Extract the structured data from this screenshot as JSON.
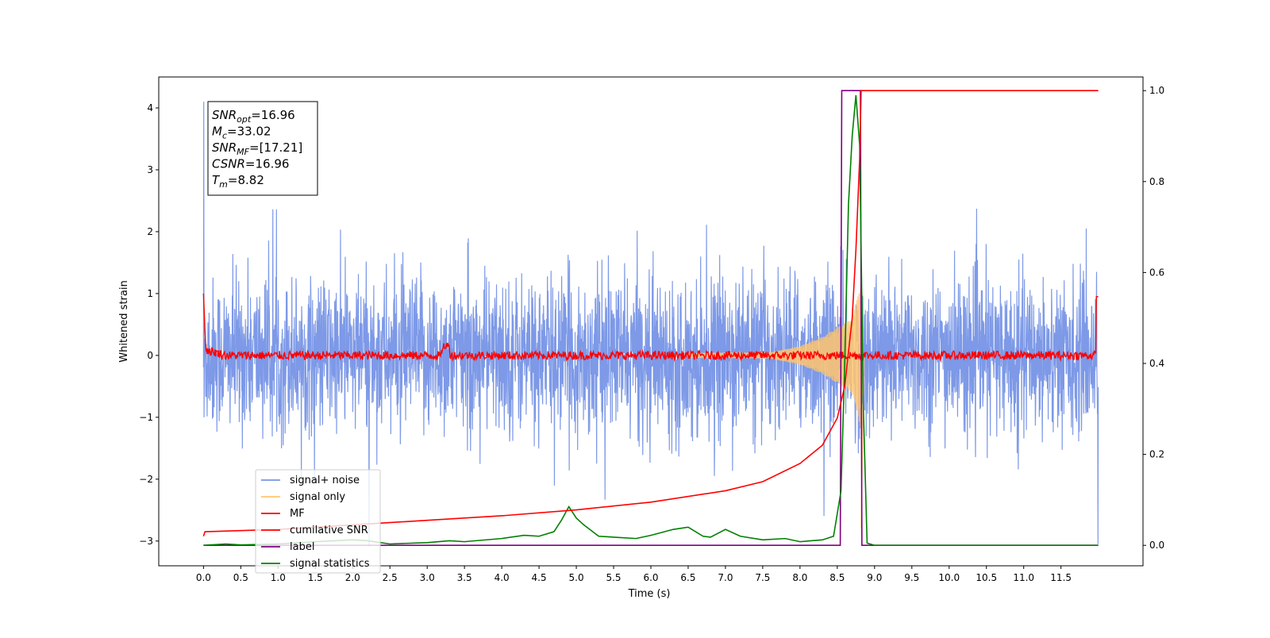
{
  "chart_data": {
    "type": "line",
    "xlabel": "Time (s)",
    "ylabel": "Whitened strain",
    "xlim": [
      -0.6,
      12.6
    ],
    "ylim": [
      -3.4,
      4.5
    ],
    "y2lim": [
      -0.045,
      1.03
    ],
    "x_ticks": [
      0.0,
      0.5,
      1.0,
      1.5,
      2.0,
      2.5,
      3.0,
      3.5,
      4.0,
      4.5,
      5.0,
      5.5,
      6.0,
      6.5,
      7.0,
      7.5,
      8.0,
      8.5,
      9.0,
      9.5,
      10.0,
      10.5,
      11.0,
      11.5
    ],
    "x_tick_labels": [
      "0.0",
      "0.5",
      "1.0",
      "1.5",
      "2.0",
      "2.5",
      "3.0",
      "3.5",
      "4.0",
      "4.5",
      "5.0",
      "5.5",
      "6.0",
      "6.5",
      "7.0",
      "7.5",
      "8.0",
      "8.5",
      "9.0",
      "9.5",
      "10.0",
      "10.5",
      "11.0",
      "11.5"
    ],
    "y_ticks": [
      -3,
      -2,
      -1,
      0,
      1,
      2,
      3,
      4
    ],
    "y_tick_labels": [
      "−3",
      "−2",
      "−1",
      "0",
      "1",
      "2",
      "3",
      "4"
    ],
    "y2_ticks": [
      0.0,
      0.2,
      0.4,
      0.6,
      0.8,
      1.0
    ],
    "y2_tick_labels": [
      "0.0",
      "0.2",
      "0.4",
      "0.6",
      "0.8",
      "1.0"
    ],
    "grid": false,
    "legend_position": "lower-left",
    "annotation_lines": [
      {
        "base": "SNR",
        "sub": "opt",
        "rest": "=16.96"
      },
      {
        "base": "M",
        "sub": "c",
        "rest": "=33.02"
      },
      {
        "base": "SNR",
        "sub": "MF",
        "rest": "=[17.21]"
      },
      {
        "base": "CSNR",
        "sub": "",
        "rest": "=16.96"
      },
      {
        "base": "T",
        "sub": "m",
        "rest": "=8.82"
      }
    ],
    "series": [
      {
        "name": "signal+ noise",
        "color": "#7694e6",
        "axis": "left",
        "kind": "noise",
        "t_range": [
          0,
          12.0
        ],
        "typical_envelope": [
          -1.6,
          1.6
        ],
        "peak_range": [
          -3.1,
          4.1
        ]
      },
      {
        "name": "signal only",
        "color": "#ffc66e",
        "axis": "left",
        "kind": "chirp",
        "x": [
          0,
          7.6,
          8.0,
          8.3,
          8.5,
          8.7,
          8.82,
          8.85,
          12.0
        ],
        "amplitude": [
          0,
          0.05,
          0.15,
          0.3,
          0.45,
          0.6,
          1.2,
          0,
          0
        ]
      },
      {
        "name": "MF",
        "color": "#ff0000",
        "axis": "left",
        "kind": "mf",
        "x": [
          0,
          0.03,
          0.3,
          3.2,
          8.8,
          8.82,
          12.0
        ],
        "y": [
          1.0,
          0.1,
          0.0,
          0.18,
          0.3,
          0.0,
          0.95
        ]
      },
      {
        "name": "cumilative SNR",
        "color": "#ff0000",
        "axis": "right",
        "x": [
          0.0,
          0.02,
          1.0,
          2.0,
          3.0,
          4.0,
          5.0,
          6.0,
          7.0,
          7.5,
          8.0,
          8.3,
          8.5,
          8.6,
          8.7,
          8.75,
          8.8,
          8.82,
          8.85,
          9.0,
          12.0
        ],
        "y": [
          0.02,
          0.03,
          0.035,
          0.045,
          0.055,
          0.065,
          0.078,
          0.095,
          0.12,
          0.14,
          0.18,
          0.22,
          0.28,
          0.35,
          0.5,
          0.65,
          0.85,
          1.0,
          1.0,
          1.0,
          1.0
        ]
      },
      {
        "name": "label",
        "color": "#800080",
        "axis": "right",
        "x": [
          0.0,
          8.54,
          8.56,
          8.81,
          8.83,
          12.0
        ],
        "y": [
          0.0,
          0.0,
          1.0,
          1.0,
          0.0,
          0.0
        ]
      },
      {
        "name": "signal statistics",
        "color": "#008000",
        "axis": "right",
        "x": [
          0.0,
          0.3,
          0.5,
          1.0,
          1.5,
          2.0,
          2.2,
          2.5,
          3.0,
          3.3,
          3.5,
          4.0,
          4.3,
          4.5,
          4.7,
          4.8,
          4.9,
          5.0,
          5.1,
          5.3,
          5.5,
          5.8,
          6.0,
          6.3,
          6.5,
          6.7,
          6.8,
          7.0,
          7.2,
          7.5,
          7.8,
          8.0,
          8.3,
          8.45,
          8.55,
          8.6,
          8.65,
          8.7,
          8.75,
          8.8,
          8.85,
          8.9,
          9.0,
          12.0
        ],
        "y": [
          0.0,
          0.003,
          0.001,
          0.003,
          0.008,
          0.012,
          0.01,
          0.003,
          0.006,
          0.01,
          0.008,
          0.015,
          0.022,
          0.02,
          0.03,
          0.055,
          0.085,
          0.06,
          0.045,
          0.02,
          0.018,
          0.015,
          0.022,
          0.035,
          0.04,
          0.02,
          0.018,
          0.035,
          0.02,
          0.012,
          0.015,
          0.008,
          0.012,
          0.02,
          0.12,
          0.4,
          0.75,
          0.9,
          0.99,
          0.88,
          0.3,
          0.005,
          0.0,
          0.0
        ]
      }
    ]
  }
}
